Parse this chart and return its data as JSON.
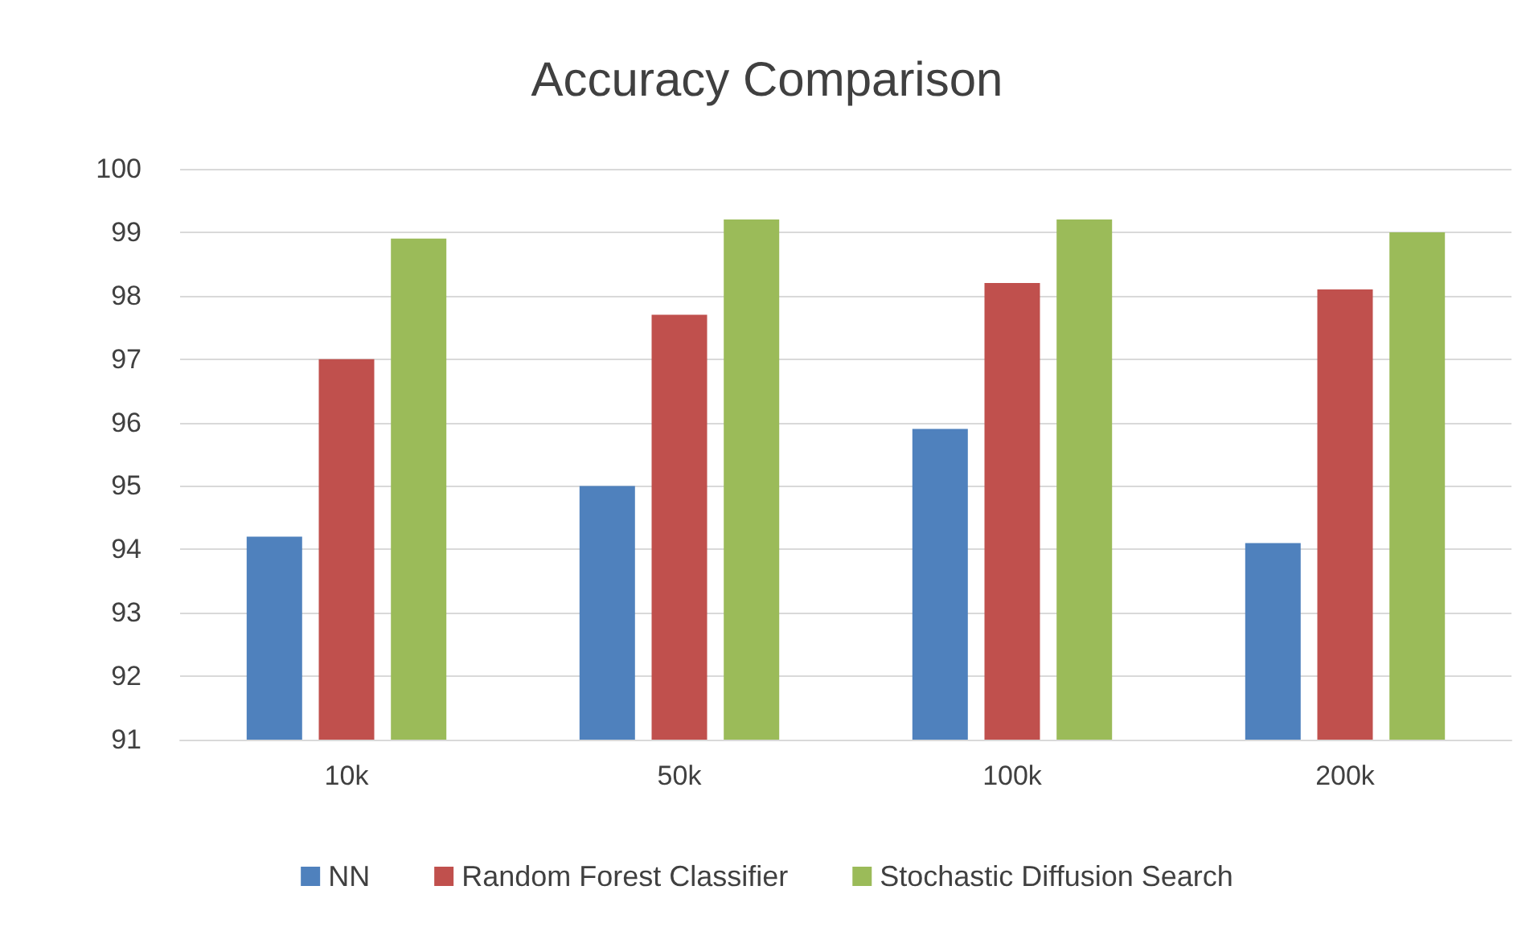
{
  "chart_data": {
    "type": "bar",
    "title": "Accuracy Comparison",
    "categories": [
      "10k",
      "50k",
      "100k",
      "200k"
    ],
    "series": [
      {
        "name": "NN",
        "color": "#4f81bd",
        "values": [
          94.2,
          95.0,
          95.9,
          94.1
        ]
      },
      {
        "name": "Random Forest Classifier",
        "color": "#c0504d",
        "values": [
          97.0,
          97.7,
          98.2,
          98.1
        ]
      },
      {
        "name": "Stochastic Diffusion Search",
        "color": "#9bbb59",
        "values": [
          98.9,
          99.2,
          99.2,
          99.0
        ]
      }
    ],
    "ylim": [
      91,
      100
    ],
    "yticks": [
      91,
      92,
      93,
      94,
      95,
      96,
      97,
      98,
      99,
      100
    ],
    "grid": "y",
    "legend": "bottom"
  }
}
